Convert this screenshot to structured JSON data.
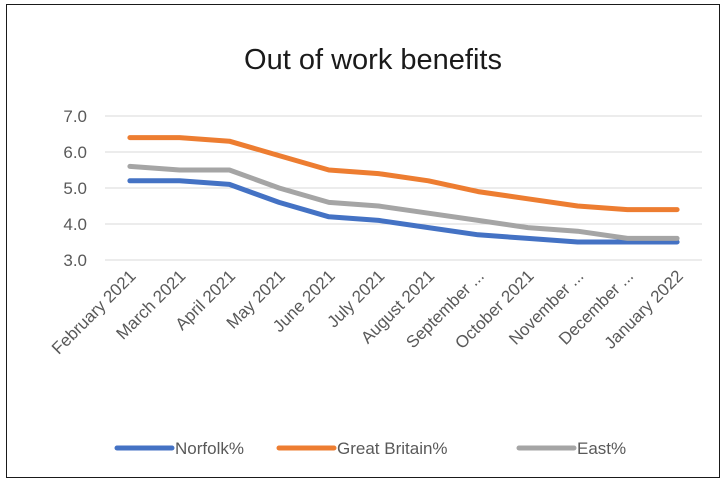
{
  "chart_data": {
    "type": "line",
    "title": "Out of work benefits",
    "xlabel": "",
    "ylabel": "",
    "categories": [
      "February 2021",
      "March 2021",
      "April 2021",
      "May 2021",
      "June 2021",
      "July 2021",
      "August 2021",
      "September ...",
      "October 2021",
      "November ...",
      "December ...",
      "January 2022"
    ],
    "ylim": [
      3.0,
      7.0
    ],
    "yticks": [
      "3.0",
      "4.0",
      "5.0",
      "6.0",
      "7.0"
    ],
    "grid": "horizontal",
    "legend": "bottom",
    "series": [
      {
        "name": "Norfolk%",
        "color": "#4472c4",
        "values": [
          5.2,
          5.2,
          5.1,
          4.6,
          4.2,
          4.1,
          3.9,
          3.7,
          3.6,
          3.5,
          3.5,
          3.5
        ]
      },
      {
        "name": "Great Britain%",
        "color": "#ed7d31",
        "values": [
          6.4,
          6.4,
          6.3,
          5.9,
          5.5,
          5.4,
          5.2,
          4.9,
          4.7,
          4.5,
          4.4,
          4.4
        ]
      },
      {
        "name": "East%",
        "color": "#a5a5a5",
        "values": [
          5.6,
          5.5,
          5.5,
          5.0,
          4.6,
          4.5,
          4.3,
          4.1,
          3.9,
          3.8,
          3.6,
          3.6
        ]
      }
    ]
  }
}
